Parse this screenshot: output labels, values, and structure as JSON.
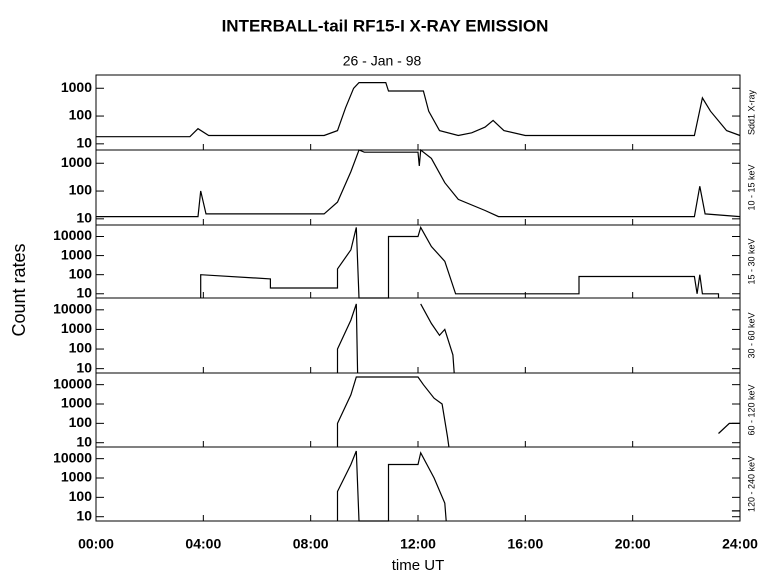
{
  "chart_data": {
    "type": "line",
    "title": "INTERBALL-tail  RF15-I   X-RAY  EMISSION",
    "subtitle": "26 - Jan - 98",
    "ylabel": "Count  rates",
    "xlabel": "time UT",
    "log_y": true,
    "color": "#000000",
    "xlim": [
      0,
      24
    ],
    "xticks": [
      {
        "value": 0,
        "label": "00:00"
      },
      {
        "value": 4,
        "label": "04:00"
      },
      {
        "value": 8,
        "label": "08:00"
      },
      {
        "value": 12,
        "label": "12:00"
      },
      {
        "value": 16,
        "label": "16:00"
      },
      {
        "value": 20,
        "label": "20:00"
      },
      {
        "value": 24,
        "label": "24:00"
      }
    ],
    "series": [
      {
        "name": "Sdd1  X-ray",
        "ylim": [
          6,
          3000
        ],
        "yticks": [
          10,
          100,
          1000
        ],
        "x": [
          0,
          3.5,
          3.8,
          4.2,
          8.5,
          9.0,
          9.3,
          9.6,
          9.8,
          10.8,
          10.9,
          12.2,
          12.4,
          12.8,
          13.5,
          14.0,
          14.5,
          14.8,
          15.2,
          16,
          22.3,
          22.6,
          22.9,
          23.5,
          24
        ],
        "values": [
          18,
          18,
          35,
          20,
          20,
          30,
          200,
          1000,
          1600,
          1600,
          800,
          800,
          150,
          30,
          20,
          25,
          40,
          70,
          30,
          20,
          20,
          450,
          150,
          30,
          20
        ]
      },
      {
        "name": "10 - 15 keV",
        "ylim": [
          6,
          3000
        ],
        "yticks": [
          10,
          100,
          1000
        ],
        "x": [
          0,
          3.8,
          3.9,
          4.1,
          8.5,
          9.0,
          9.5,
          9.8,
          10,
          12,
          12.05,
          12.1,
          12.5,
          13,
          13.5,
          14.5,
          15,
          22.3,
          22.5,
          22.7,
          24
        ],
        "values": [
          12,
          12,
          100,
          15,
          15,
          40,
          500,
          3000,
          2500,
          2500,
          800,
          3000,
          1500,
          200,
          50,
          20,
          12,
          12,
          150,
          15,
          12
        ]
      },
      {
        "name": "15 - 30 keV",
        "ylim": [
          6,
          40000
        ],
        "yticks": [
          10,
          100,
          1000,
          10000
        ],
        "x": [
          3.9,
          3.9,
          6.5,
          6.5,
          9.0,
          9.0,
          9.5,
          9.7,
          9.8,
          10.9,
          10.9,
          12.0,
          12.1,
          12.5,
          13.0,
          13.4,
          18.0,
          18.0,
          22.3,
          22.4,
          22.5,
          22.6,
          23.2,
          23.2
        ],
        "values": [
          6,
          100,
          60,
          20,
          20,
          200,
          2000,
          30000,
          6,
          6,
          10000,
          10000,
          30000,
          3000,
          500,
          10,
          10,
          80,
          80,
          10,
          100,
          10,
          10,
          6
        ]
      },
      {
        "name": "30 - 60 keV",
        "ylim": [
          6,
          40000
        ],
        "yticks": [
          10,
          100,
          1000,
          10000
        ],
        "x": [
          9.0,
          9.0,
          9.5,
          9.7,
          9.75,
          12.1,
          12.1,
          12.5,
          12.8,
          13.0,
          13.3,
          13.35
        ],
        "values": [
          6,
          100,
          3000,
          20000,
          6,
          null,
          20000,
          2000,
          500,
          1000,
          50,
          6
        ]
      },
      {
        "name": "60 - 120 keV",
        "ylim": [
          6,
          40000
        ],
        "yticks": [
          10,
          100,
          1000,
          10000
        ],
        "x": [
          9.0,
          9.0,
          9.5,
          9.7,
          12,
          12.2,
          12.6,
          12.9,
          13.1,
          13.15,
          23.2,
          23.2,
          23.6,
          24
        ],
        "values": [
          6,
          100,
          3000,
          25000,
          25000,
          10000,
          2000,
          1000,
          20,
          6,
          null,
          30,
          100,
          100
        ]
      },
      {
        "name": "120 - 240 keV",
        "ylim": [
          6,
          40000
        ],
        "yticks": [
          10,
          100,
          1000,
          10000
        ],
        "x": [
          9.0,
          9.0,
          9.5,
          9.7,
          9.8,
          10.9,
          10.9,
          12,
          12.1,
          12.6,
          13.0,
          13.05,
          23.7,
          23.7,
          24
        ],
        "values": [
          6,
          200,
          5000,
          25000,
          6,
          6,
          5000,
          5000,
          20000,
          1000,
          50,
          6,
          null,
          20,
          20
        ]
      }
    ]
  }
}
